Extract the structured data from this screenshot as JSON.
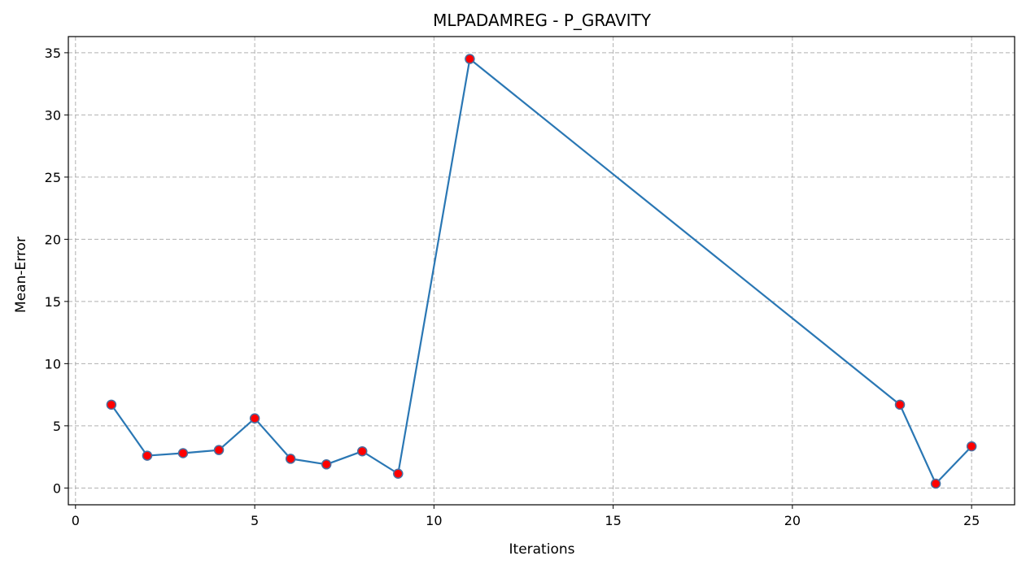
{
  "chart_data": {
    "type": "line",
    "title": "MLPADAMREG - P_GRAVITY",
    "xlabel": "Iterations",
    "ylabel": "Mean-Error",
    "xlim": [
      -0.2,
      26.2
    ],
    "ylim": [
      -1.35,
      36.3
    ],
    "xticks": [
      0,
      5,
      10,
      15,
      20,
      25
    ],
    "yticks": [
      0,
      5,
      10,
      15,
      20,
      25,
      30,
      35
    ],
    "grid": true,
    "line_color": "#2a77b4",
    "marker_color": "#ff0000",
    "marker_edge_color": "#4a6fa0",
    "series": [
      {
        "x": [
          1,
          2,
          3,
          4,
          5,
          6,
          7,
          8,
          9,
          11,
          23,
          24,
          25
        ],
        "y": [
          6.7,
          2.6,
          2.8,
          3.05,
          5.6,
          2.35,
          1.9,
          2.95,
          1.15,
          34.5,
          6.7,
          0.35,
          3.35
        ]
      }
    ]
  }
}
